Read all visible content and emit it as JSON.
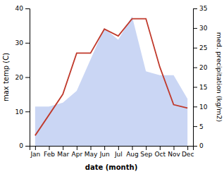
{
  "chart_data": {
    "type": "line",
    "categories": [
      "Jan",
      "Feb",
      "Mar",
      "Apr",
      "May",
      "Jun",
      "Jul",
      "Aug",
      "Sep",
      "Oct",
      "Nov",
      "Dec"
    ],
    "xlabel": "date (month)",
    "ylabel": "max temp (C)",
    "y2label": "med. precipitation (kg/m2)",
    "ylim": [
      0,
      40
    ],
    "yticks": [
      0,
      10,
      20,
      30,
      40
    ],
    "y2lim": [
      0,
      35
    ],
    "y2ticks": [
      0,
      5,
      10,
      15,
      20,
      25,
      30,
      35
    ],
    "series": [
      {
        "type": "area",
        "axis": "y2",
        "color": "#b8c8f0",
        "values": [
          10,
          10,
          11,
          14,
          22,
          30,
          27,
          33,
          19,
          18,
          18,
          12
        ]
      },
      {
        "type": "line",
        "color": "#c0392b",
        "values": [
          3,
          9,
          15,
          27,
          27,
          34,
          32,
          37,
          37,
          23,
          12,
          11
        ]
      }
    ]
  }
}
